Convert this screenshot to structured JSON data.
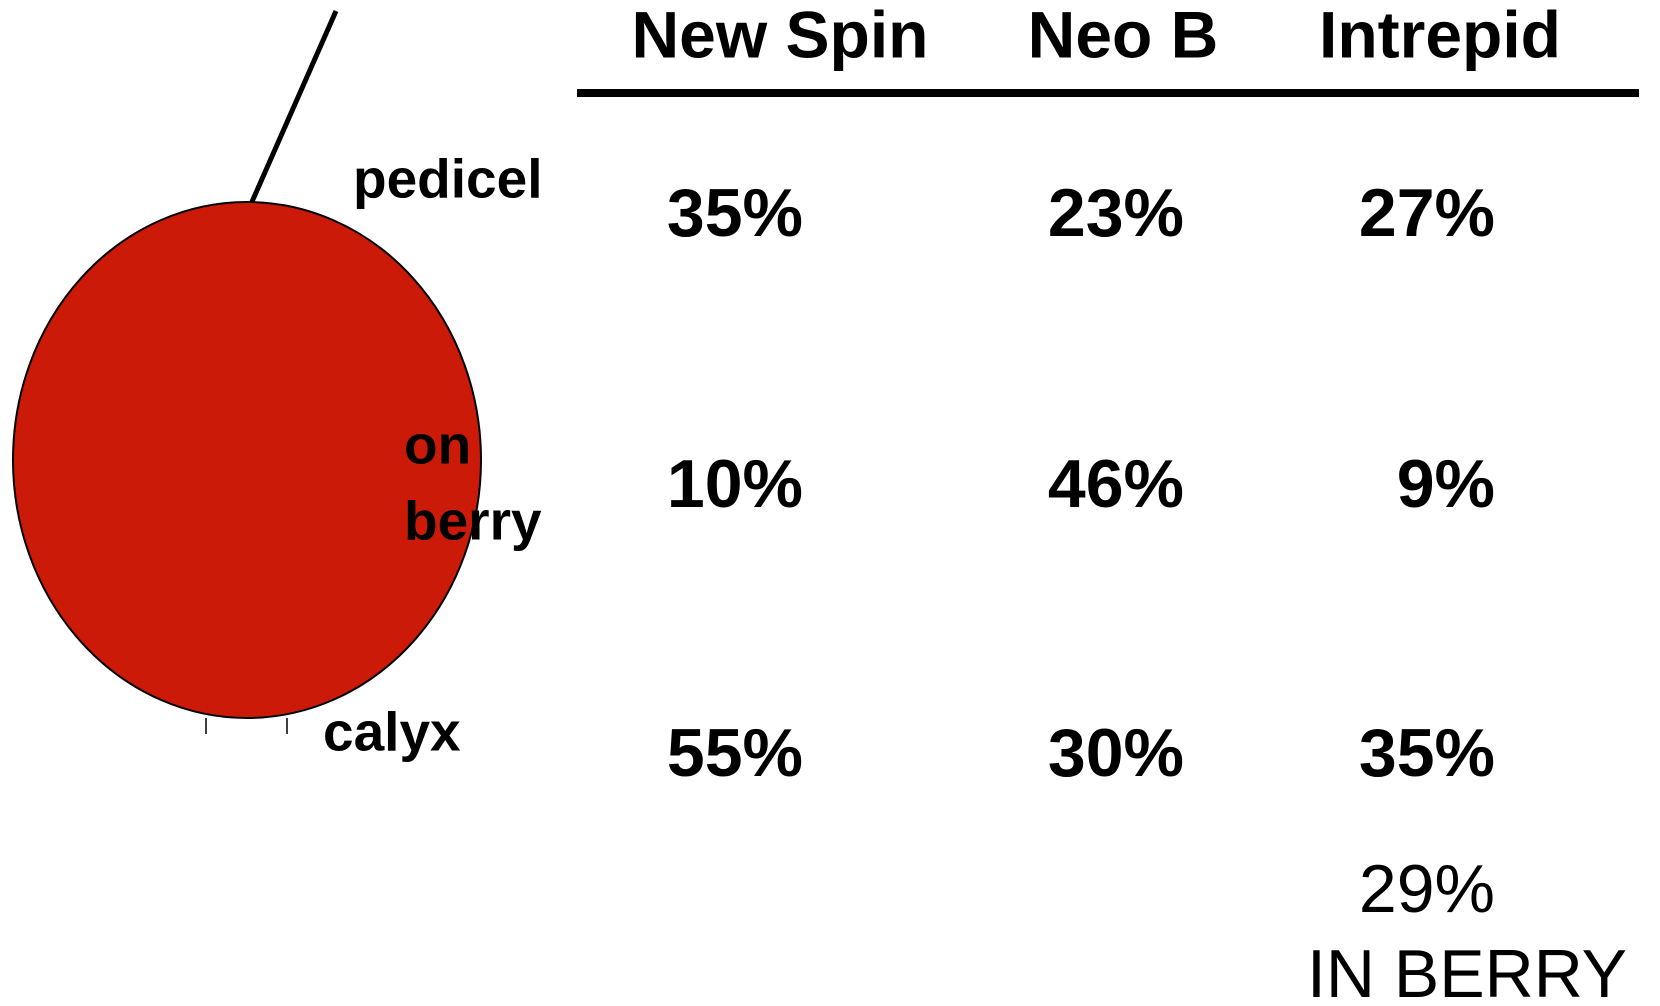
{
  "header": {
    "columns": [
      "New Spin",
      "Neo B",
      "Intrepid"
    ]
  },
  "rows": [
    {
      "label": "pedicel",
      "values": [
        "35%",
        "23%",
        "27%"
      ]
    },
    {
      "label": [
        "on",
        "berry"
      ],
      "values": [
        "10%",
        "46%",
        "9%"
      ]
    },
    {
      "label": "calyx",
      "values": [
        "55%",
        "30%",
        "35%"
      ]
    }
  ],
  "note": [
    "29%",
    "IN BERRY"
  ]
}
